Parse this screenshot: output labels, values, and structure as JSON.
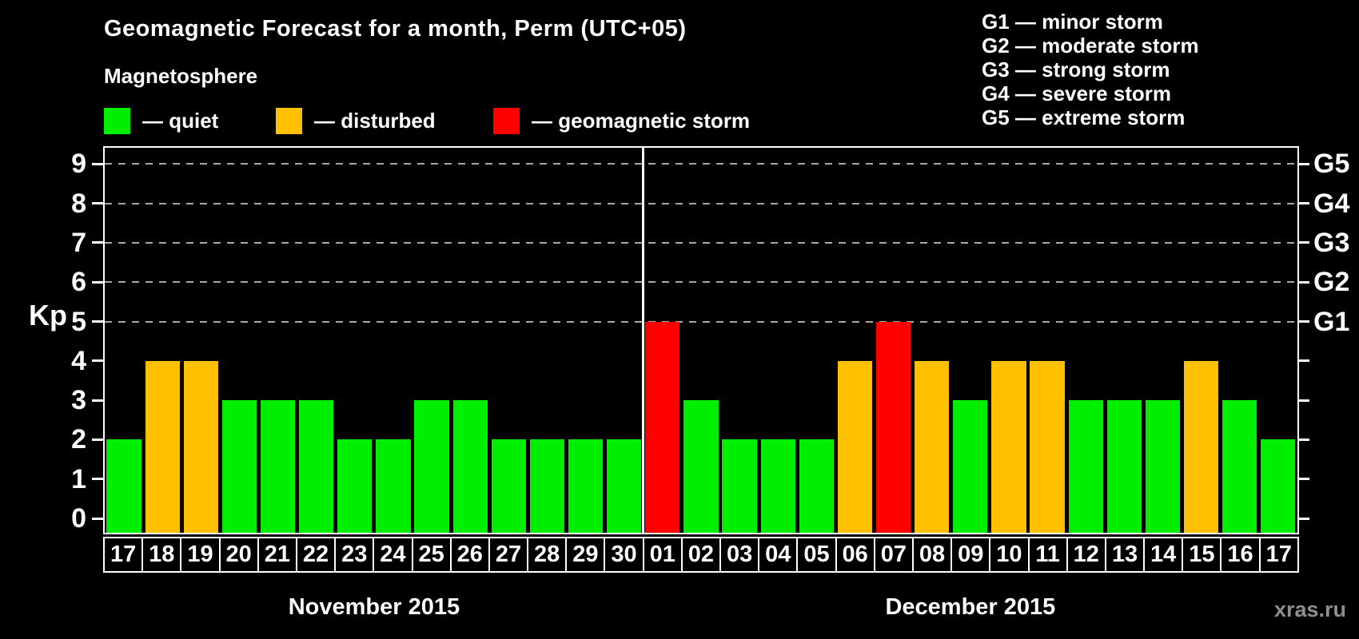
{
  "header": {
    "title": "Geomagnetic Forecast for a month, Perm (UTC+05)",
    "subtitle": "Magnetosphere"
  },
  "legend": {
    "items": [
      {
        "label": "— quiet",
        "status": "quiet",
        "color": "#00ee00"
      },
      {
        "label": "— disturbed",
        "status": "disturbed",
        "color": "#ffc000"
      },
      {
        "label": "— geomagnetic storm",
        "status": "storm",
        "color": "#ff0000"
      }
    ]
  },
  "g_legend": {
    "lines": [
      "G1 — minor storm",
      "G2 — moderate storm",
      "G3 — strong storm",
      "G4 — severe storm",
      "G5 — extreme storm"
    ]
  },
  "axis": {
    "kp_label": "Kp",
    "left_ticks": [
      "0",
      "1",
      "2",
      "3",
      "4",
      "5",
      "6",
      "7",
      "8",
      "9"
    ],
    "right_labels": [
      {
        "label": "G1",
        "kp": 5
      },
      {
        "label": "G2",
        "kp": 6
      },
      {
        "label": "G3",
        "kp": 7
      },
      {
        "label": "G4",
        "kp": 8
      },
      {
        "label": "G5",
        "kp": 9
      }
    ]
  },
  "watermark": "xras.ru",
  "chart_data": {
    "type": "bar",
    "title": "Geomagnetic Forecast for a month, Perm (UTC+05)",
    "ylabel": "Kp",
    "ylim": [
      0,
      9
    ],
    "grid": "dashed horizontal at Kp 5-9",
    "gridlines_at_kp": [
      5,
      6,
      7,
      8,
      9
    ],
    "legend_position": "top",
    "status_colors": {
      "quiet": "#00ee00",
      "disturbed": "#ffc000",
      "storm": "#ff0000"
    },
    "months": [
      {
        "label": "November 2015",
        "days": [
          "17",
          "18",
          "19",
          "20",
          "21",
          "22",
          "23",
          "24",
          "25",
          "26",
          "27",
          "28",
          "29",
          "30"
        ],
        "kp": [
          2,
          4,
          4,
          3,
          3,
          3,
          2,
          2,
          3,
          3,
          2,
          2,
          2,
          2
        ],
        "status": [
          "quiet",
          "disturbed",
          "disturbed",
          "quiet",
          "quiet",
          "quiet",
          "quiet",
          "quiet",
          "quiet",
          "quiet",
          "quiet",
          "quiet",
          "quiet",
          "quiet"
        ]
      },
      {
        "label": "December 2015",
        "days": [
          "01",
          "02",
          "03",
          "04",
          "05",
          "06",
          "07",
          "08",
          "09",
          "10",
          "11",
          "12",
          "13",
          "14",
          "15",
          "16",
          "17"
        ],
        "kp": [
          5,
          3,
          2,
          2,
          2,
          4,
          5,
          4,
          3,
          4,
          4,
          3,
          3,
          3,
          4,
          3,
          2
        ],
        "status": [
          "storm",
          "quiet",
          "quiet",
          "quiet",
          "quiet",
          "disturbed",
          "storm",
          "disturbed",
          "quiet",
          "disturbed",
          "disturbed",
          "quiet",
          "quiet",
          "quiet",
          "disturbed",
          "quiet",
          "quiet"
        ]
      }
    ]
  }
}
